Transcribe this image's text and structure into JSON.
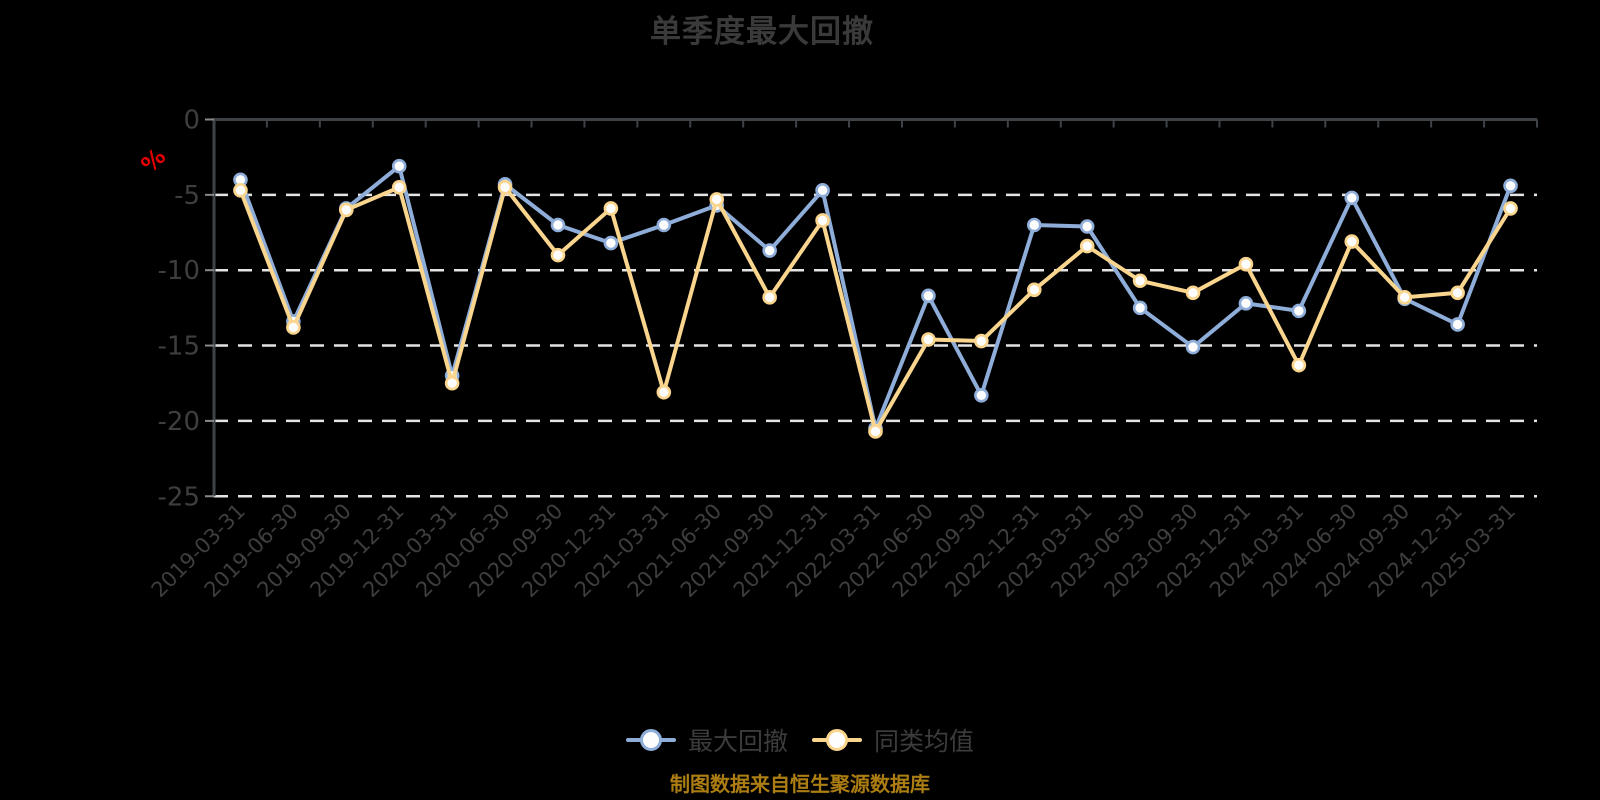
{
  "title": "单季度最大回撤",
  "caption": "制图数据来自恒生聚源数据库",
  "legend": {
    "items": [
      {
        "label": "最大回撤",
        "color": "#8fadd9"
      },
      {
        "label": "同类均值",
        "color": "#f9d58e"
      }
    ]
  },
  "y_axis": {
    "unit_label": "%",
    "unit_label_color": "#e30000",
    "tick_labels": [
      "0",
      "-5",
      "-10",
      "-15",
      "-20",
      "-25"
    ]
  },
  "colors": {
    "background": "#000000",
    "axis_line": "#3f4348",
    "gridline": "#e4e4e4",
    "tick_stub": "#8a8a8a",
    "axis_text": "#3e3e3e",
    "title_text": "#3a3a3a",
    "series_blue": "#8fadd9",
    "series_yellow": "#f9d58e",
    "marker_fill": "#fdfdfd"
  },
  "chart_data": {
    "type": "line",
    "title": "单季度最大回撤",
    "ylabel": "%",
    "ylim": [
      -25,
      0
    ],
    "y_ticks": [
      0,
      -5,
      -10,
      -15,
      -20,
      -25
    ],
    "grid": "horizontal-dashed",
    "legend_position": "bottom",
    "categories": [
      "2019-03-31",
      "2019-06-30",
      "2019-09-30",
      "2019-12-31",
      "2020-03-31",
      "2020-06-30",
      "2020-09-30",
      "2020-12-31",
      "2021-03-31",
      "2021-06-30",
      "2021-09-30",
      "2021-12-31",
      "2022-03-31",
      "2022-06-30",
      "2022-09-30",
      "2022-12-31",
      "2023-03-31",
      "2023-06-30",
      "2023-09-30",
      "2023-12-31",
      "2024-03-31",
      "2024-06-30",
      "2024-09-30",
      "2024-12-31",
      "2025-03-31"
    ],
    "series": [
      {
        "name": "最大回撤",
        "color": "#8fadd9",
        "values": [
          -4.0,
          -13.4,
          -5.9,
          -3.1,
          -17.0,
          -4.3,
          -7.0,
          -8.2,
          -7.0,
          -5.7,
          -8.7,
          -4.7,
          -20.5,
          -11.7,
          -18.3,
          -7.0,
          -7.1,
          -12.5,
          -15.1,
          -12.2,
          -12.7,
          -5.2,
          -11.9,
          -13.6,
          -4.4
        ]
      },
      {
        "name": "同类均值",
        "color": "#f9d58e",
        "values": [
          -4.7,
          -13.8,
          -6.0,
          -4.5,
          -17.5,
          -4.5,
          -9.0,
          -5.9,
          -18.1,
          -5.3,
          -11.8,
          -6.7,
          -20.7,
          -14.6,
          -14.7,
          -11.3,
          -8.4,
          -10.7,
          -11.5,
          -9.6,
          -16.3,
          -8.1,
          -11.8,
          -11.5,
          -5.9
        ]
      }
    ]
  }
}
